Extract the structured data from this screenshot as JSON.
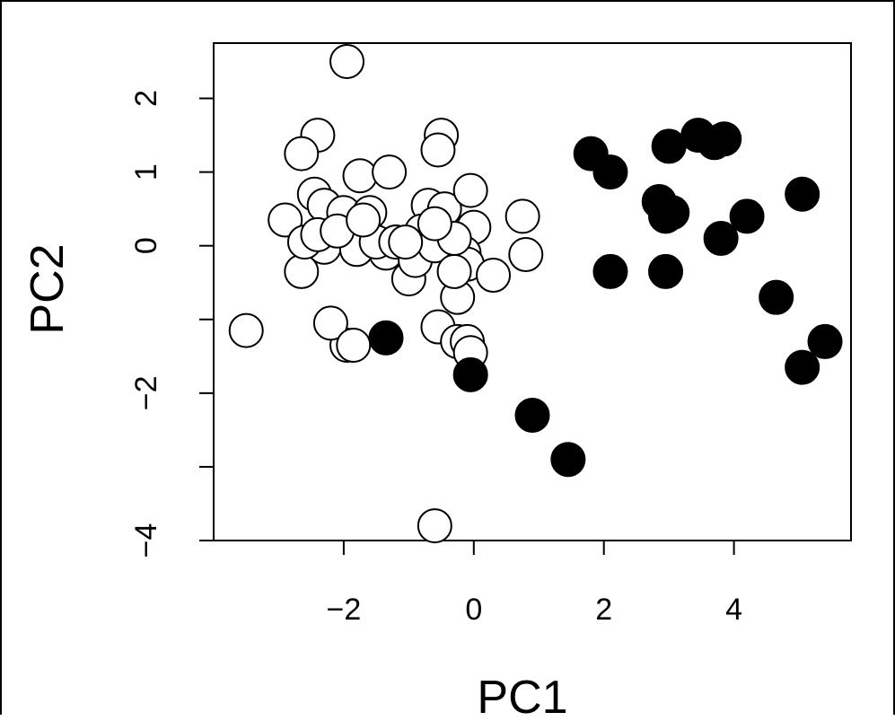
{
  "chart_data": {
    "type": "scatter",
    "title": "",
    "xlabel": "PC1",
    "ylabel": "PC2",
    "xlim": [
      -4.0,
      5.8
    ],
    "ylim": [
      -4.0,
      2.75
    ],
    "xticks": [
      -2,
      0,
      2,
      4
    ],
    "yticks": [
      -4,
      -3,
      -2,
      -1,
      0,
      1,
      2
    ],
    "xtick_labels": [
      "−2",
      "0",
      "2",
      "4"
    ],
    "ytick_labels": [
      "−4",
      "",
      "−2",
      "",
      "0",
      "1",
      "2"
    ],
    "grid": false,
    "legend": "none",
    "series": [
      {
        "marker": "open-circle",
        "x": [
          -1.95,
          -2.4,
          -2.65,
          -2.9,
          -2.65,
          -2.45,
          -2.3,
          -2.0,
          -1.75,
          -1.6,
          -1.3,
          -1.2,
          -1.35,
          -1.0,
          -0.7,
          -0.5,
          -0.55,
          -0.45,
          -0.65,
          -0.05,
          0.0,
          -0.15,
          -0.1,
          -0.25,
          0.3,
          0.75,
          0.8,
          -0.55,
          -0.25,
          -1.95,
          -2.2,
          -1.85,
          -2.3,
          -3.5,
          -2.6,
          -2.4,
          -1.8,
          -1.5,
          -1.2,
          -0.9,
          -0.8,
          -0.6,
          -0.3,
          -0.1,
          -0.6,
          -0.05,
          -0.3,
          -0.6,
          -2.1,
          -1.7,
          -1.05
        ],
        "y": [
          2.5,
          1.5,
          1.25,
          0.35,
          -0.35,
          0.7,
          0.55,
          0.45,
          0.95,
          0.45,
          1.0,
          0.05,
          -0.1,
          -0.45,
          0.55,
          1.5,
          1.3,
          0.5,
          0.1,
          0.75,
          0.25,
          -0.1,
          -0.25,
          -0.7,
          -0.4,
          0.4,
          -0.12,
          -1.1,
          -1.3,
          -1.35,
          -1.05,
          -1.35,
          -0.02,
          -1.15,
          0.05,
          0.15,
          -0.05,
          0.05,
          0.05,
          -0.2,
          0.2,
          0.0,
          -0.35,
          -1.3,
          -3.8,
          -1.45,
          0.1,
          0.3,
          0.2,
          0.35,
          0.05
        ]
      },
      {
        "marker": "filled-circle",
        "x": [
          1.8,
          2.1,
          2.85,
          3.0,
          2.95,
          3.05,
          3.45,
          3.7,
          3.85,
          2.1,
          2.95,
          3.8,
          4.2,
          5.05,
          4.65,
          5.05,
          5.4,
          -1.35,
          -0.05,
          0.9,
          1.45
        ],
        "y": [
          1.25,
          1.0,
          0.6,
          1.35,
          0.4,
          0.45,
          1.5,
          1.4,
          1.45,
          -0.35,
          -0.35,
          0.1,
          0.4,
          0.7,
          -0.7,
          -1.65,
          -1.3,
          -1.25,
          -1.75,
          -2.3,
          -2.9
        ]
      }
    ]
  }
}
